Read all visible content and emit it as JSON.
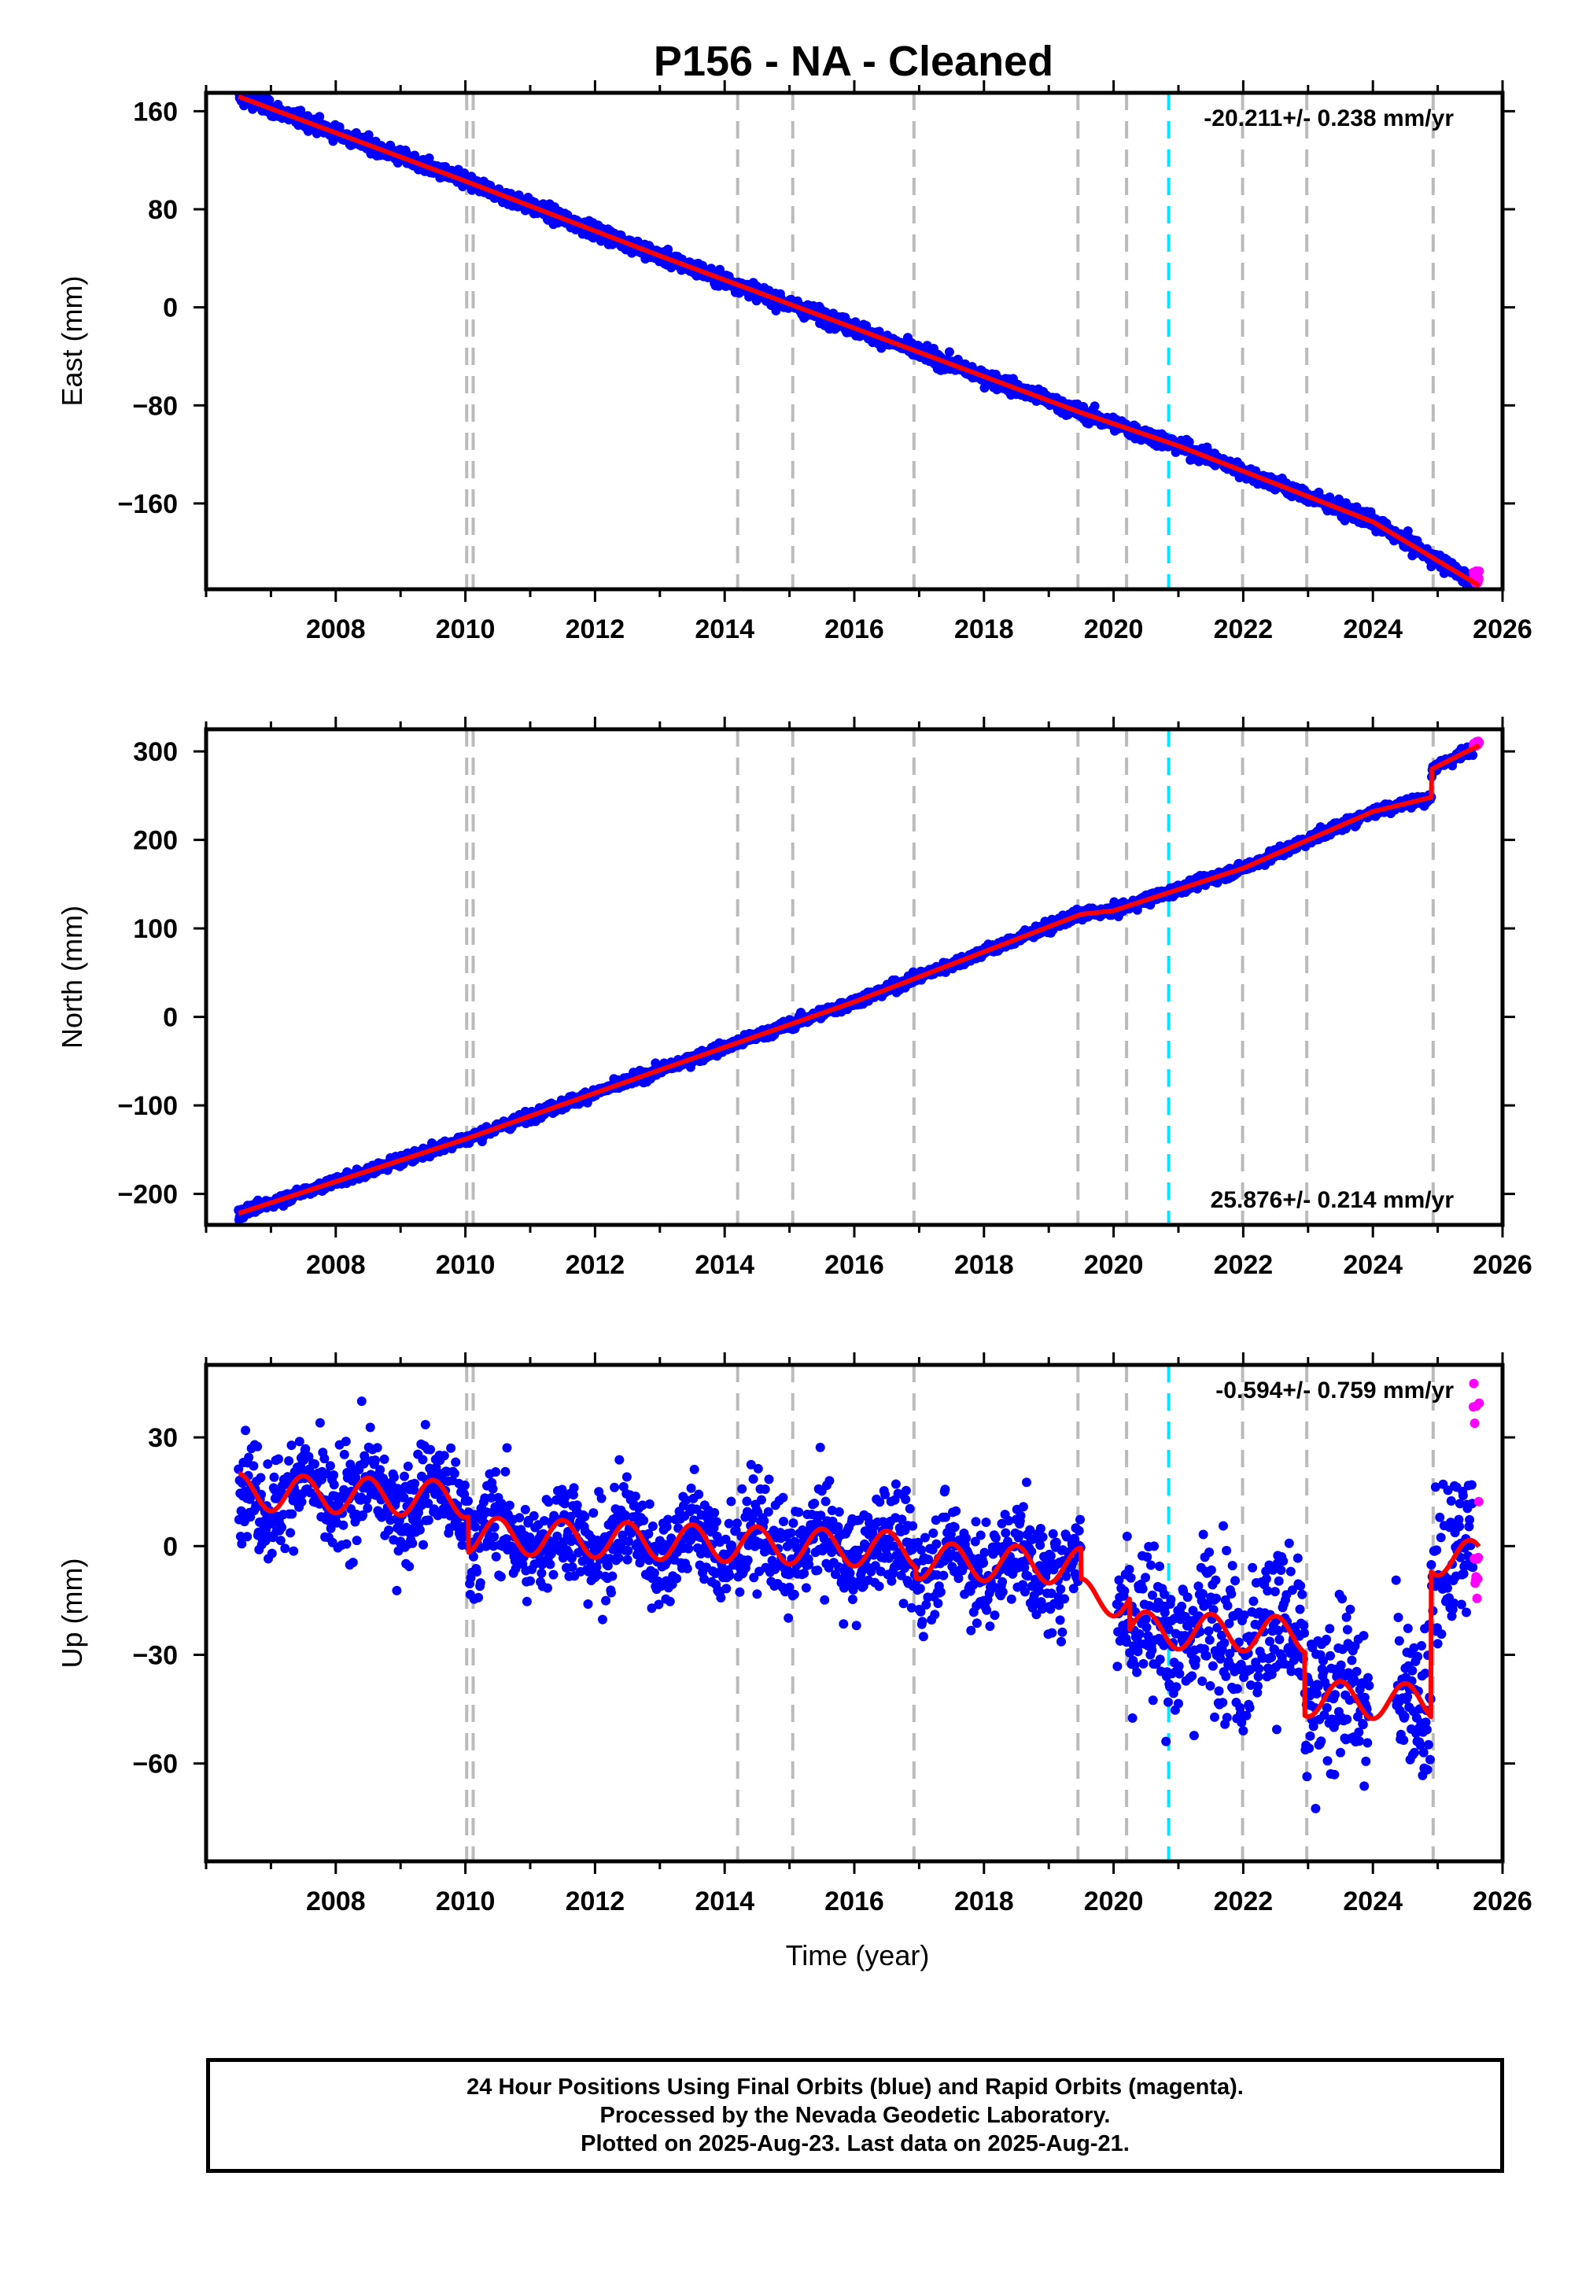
{
  "title": "P156  - NA - Cleaned",
  "xlabel": "Time (year)",
  "footer": {
    "line1": "24 Hour Positions Using Final Orbits (blue) and Rapid Orbits (magenta).",
    "line2": "Processed by the Nevada Geodetic Laboratory.",
    "line3": "Plotted on 2025-Aug-23. Last data on 2025-Aug-21."
  },
  "colors": {
    "final": "#0000ff",
    "rapid": "#ff00ff",
    "model": "#ff0000",
    "grid_gray": "#bbbbbb",
    "equipment": "#00e5ff"
  },
  "chart_data": [
    {
      "type": "scatter",
      "name": "east",
      "ylabel": "East (mm)",
      "rate_label": "-20.211+/- 0.238 mm/yr",
      "xlim": [
        2006.0,
        2026.0
      ],
      "ylim": [
        -230,
        175
      ],
      "xticks": [
        2008,
        2010,
        2012,
        2014,
        2016,
        2018,
        2020,
        2022,
        2024,
        2026
      ],
      "yticks": [
        160,
        80,
        0,
        -80,
        -160
      ],
      "data_range": [
        2006.5,
        2025.64
      ],
      "model_points": [
        [
          2006.5,
          172
        ],
        [
          2010.0,
          103
        ],
        [
          2013.0,
          42
        ],
        [
          2016.0,
          -17
        ],
        [
          2019.5,
          -86
        ],
        [
          2021.0,
          -113
        ],
        [
          2024.0,
          -175
        ],
        [
          2025.64,
          -227
        ]
      ],
      "noise_mm": 3,
      "rapid_range": [
        2025.55,
        2025.64
      ],
      "rapid_y": [
        -215,
        -227
      ]
    },
    {
      "type": "scatter",
      "name": "north",
      "ylabel": "North (mm)",
      "rate_label": "25.876+/- 0.214 mm/yr",
      "xlim": [
        2006.0,
        2026.0
      ],
      "ylim": [
        -235,
        325
      ],
      "xticks": [
        2008,
        2010,
        2012,
        2014,
        2016,
        2018,
        2020,
        2022,
        2024,
        2026
      ],
      "yticks": [
        300,
        200,
        100,
        0,
        -100,
        -200
      ],
      "data_range": [
        2006.5,
        2025.64
      ],
      "model_points": [
        [
          2006.5,
          -222
        ],
        [
          2010.0,
          -138
        ],
        [
          2013.0,
          -60
        ],
        [
          2016.0,
          17
        ],
        [
          2019.5,
          116
        ],
        [
          2020.0,
          120
        ],
        [
          2022.0,
          168
        ],
        [
          2024.0,
          232
        ],
        [
          2024.9,
          248
        ],
        [
          2024.91,
          280
        ],
        [
          2025.64,
          307
        ]
      ],
      "noise_mm": 3,
      "rapid_range": [
        2025.55,
        2025.64
      ],
      "rapid_y": [
        305,
        312
      ]
    },
    {
      "type": "scatter",
      "name": "up",
      "ylabel": "Up (mm)",
      "rate_label": "-0.594+/- 0.759 mm/yr",
      "xlim": [
        2006.0,
        2026.0
      ],
      "ylim": [
        -87,
        50
      ],
      "xticks": [
        2008,
        2010,
        2012,
        2014,
        2016,
        2018,
        2020,
        2022,
        2024,
        2026
      ],
      "yticks": [
        30,
        0,
        -30,
        -60
      ],
      "data_range": [
        2006.5,
        2025.64
      ],
      "offsets": [
        [
          2006.5,
          15
        ],
        [
          2010.05,
          3
        ],
        [
          2016.95,
          -4
        ],
        [
          2019.5,
          -14
        ],
        [
          2020.25,
          -23
        ],
        [
          2022.95,
          -42
        ],
        [
          2024.9,
          -3
        ]
      ],
      "trend_mm_per_yr": -0.594,
      "annual_amplitude_mm": 5,
      "noise_mm": 7,
      "gaps": [
        [
          2019.5,
          2020.05
        ],
        [
          2023.95,
          2024.35
        ]
      ],
      "rapid_range": [
        2025.55,
        2025.64
      ],
      "rapid_y": [
        -15,
        47
      ]
    }
  ],
  "event_lines": {
    "gray": [
      2010.02,
      2010.12,
      2014.2,
      2015.05,
      2016.92,
      2019.45,
      2020.2,
      2021.99,
      2022.98,
      2024.93
    ],
    "cyan": [
      2020.85
    ]
  }
}
